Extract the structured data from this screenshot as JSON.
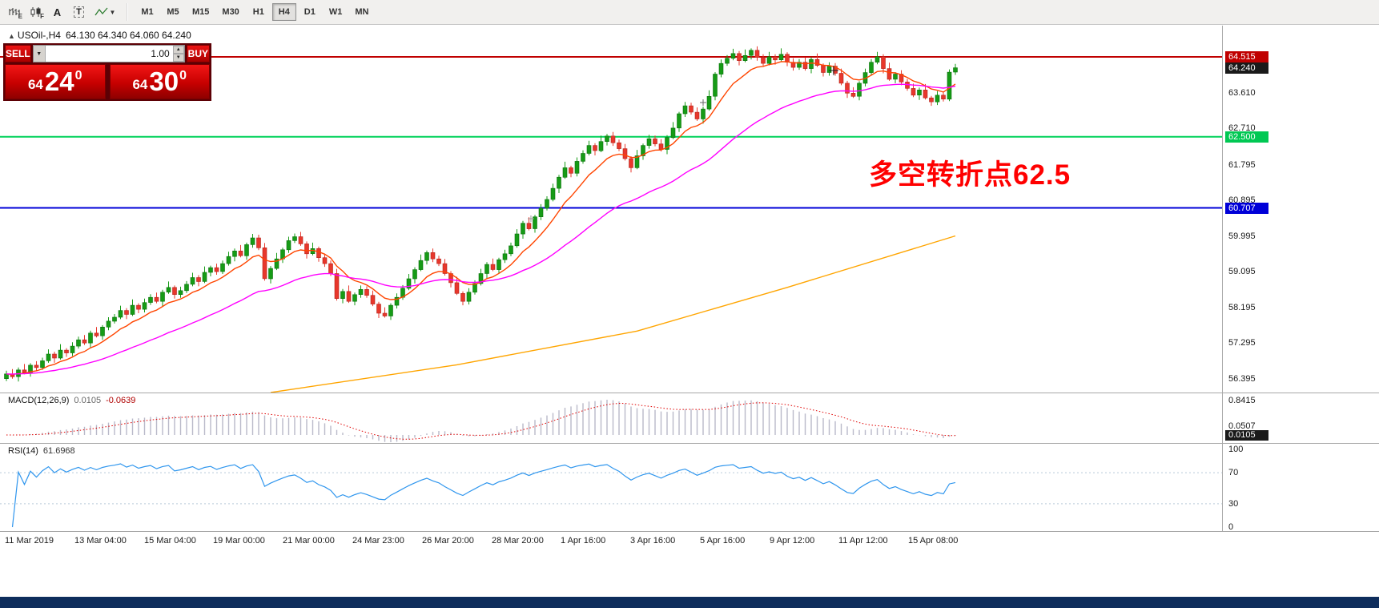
{
  "toolbar": {
    "tools": [
      {
        "name": "bar-chart",
        "sub": "E"
      },
      {
        "name": "candlestick-chart",
        "sub": "F"
      },
      {
        "name": "cursor",
        "glyph": "A"
      },
      {
        "name": "text-label",
        "glyph": "T"
      },
      {
        "name": "indicators",
        "sub": ""
      }
    ],
    "timeframes": [
      "M1",
      "M5",
      "M15",
      "M30",
      "H1",
      "H4",
      "D1",
      "W1",
      "MN"
    ],
    "active_timeframe": "H4"
  },
  "symbol_header": {
    "arrow": "▲",
    "symbol": "USOil-,H4",
    "ohlc": "64.130 64.340 64.060 64.240"
  },
  "trade_panel": {
    "sell_label": "SELL",
    "buy_label": "BUY",
    "volume": "1.00",
    "bid": {
      "prefix": "64",
      "big": "24",
      "sup": "0"
    },
    "ask": {
      "prefix": "64",
      "big": "30",
      "sup": "0"
    }
  },
  "annotation": {
    "text": "多空转折点62.5",
    "color": "#ff0000"
  },
  "hlines": [
    {
      "price": 64.515,
      "color": "#c00000",
      "label": "64.515"
    },
    {
      "price": 62.5,
      "color": "#00d25a",
      "label": "62.500"
    },
    {
      "price": 60.707,
      "color": "#0000d8",
      "label": "60.707"
    }
  ],
  "price_axis": {
    "ticks": [
      "63.610",
      "62.710",
      "61.795",
      "60.895",
      "59.995",
      "59.095",
      "58.195",
      "57.295",
      "56.395"
    ],
    "badges": [
      {
        "text": "64.515",
        "color": "#c00000"
      },
      {
        "text": "64.240",
        "color": "#1a1a1a"
      },
      {
        "text": "62.500",
        "color": "#00c853"
      },
      {
        "text": "60.707",
        "color": "#0000d8"
      }
    ]
  },
  "macd_panel": {
    "label": "MACD(12,26,9)",
    "main_value": "0.0105",
    "signal_value": "-0.0639",
    "axis_top": "0.8415",
    "axis_low": "0.0507",
    "value_badge": "0.0105"
  },
  "rsi_panel": {
    "label": "RSI(14)",
    "value": "61.6968",
    "axis": [
      "100",
      "70",
      "30",
      "0"
    ],
    "levels": [
      70,
      30
    ]
  },
  "time_axis": {
    "labels": [
      "11 Mar 2019",
      "13 Mar 04:00",
      "15 Mar 04:00",
      "19 Mar 00:00",
      "21 Mar 00:00",
      "24 Mar 23:00",
      "26 Mar 20:00",
      "28 Mar 20:00",
      "1 Apr 16:00",
      "3 Apr 16:00",
      "5 Apr 16:00",
      "9 Apr 12:00",
      "11 Apr 12:00",
      "15 Apr 08:00"
    ]
  },
  "chart_data": {
    "type": "candlestick",
    "symbol": "USOil-",
    "timeframe": "H4",
    "title": "USOil- H4 candlestick chart with MACD(12,26,9) and RSI(14)",
    "ylim": [
      56.0,
      65.3
    ],
    "last_bar": {
      "open": 64.13,
      "high": 64.34,
      "low": 64.06,
      "close": 64.24
    },
    "key_levels": [
      64.515,
      62.5,
      60.707
    ],
    "candles": [
      [
        56.4,
        56.6,
        56.34,
        56.52
      ],
      [
        56.52,
        56.64,
        56.4,
        56.45
      ],
      [
        56.45,
        56.68,
        56.33,
        56.62
      ],
      [
        56.62,
        56.77,
        56.51,
        56.55
      ],
      [
        56.55,
        56.79,
        56.45,
        56.74
      ],
      [
        56.74,
        56.84,
        56.6,
        56.68
      ],
      [
        56.68,
        56.93,
        56.62,
        56.85
      ],
      [
        56.85,
        57.14,
        56.8,
        57.02
      ],
      [
        57.02,
        57.08,
        56.8,
        56.92
      ],
      [
        56.92,
        57.27,
        56.88,
        57.12
      ],
      [
        57.12,
        57.17,
        56.95,
        57.05
      ],
      [
        57.05,
        57.32,
        56.97,
        57.22
      ],
      [
        57.22,
        57.46,
        57.16,
        57.38
      ],
      [
        57.38,
        57.5,
        57.25,
        57.3
      ],
      [
        57.3,
        57.61,
        57.18,
        57.55
      ],
      [
        57.55,
        57.7,
        57.44,
        57.48
      ],
      [
        57.48,
        57.75,
        57.38,
        57.7
      ],
      [
        57.7,
        57.95,
        57.62,
        57.85
      ],
      [
        57.85,
        58.03,
        57.79,
        57.95
      ],
      [
        57.95,
        58.24,
        57.9,
        58.12
      ],
      [
        58.12,
        58.18,
        57.9,
        58.02
      ],
      [
        58.02,
        58.4,
        57.98,
        58.25
      ],
      [
        58.25,
        58.3,
        58.05,
        58.15
      ],
      [
        58.15,
        58.42,
        58.07,
        58.32
      ],
      [
        58.32,
        58.53,
        58.26,
        58.45
      ],
      [
        58.45,
        58.57,
        58.3,
        58.35
      ],
      [
        58.35,
        58.64,
        58.23,
        58.58
      ],
      [
        58.58,
        58.85,
        58.54,
        58.7
      ],
      [
        58.7,
        58.75,
        58.42,
        58.52
      ],
      [
        58.52,
        58.72,
        58.44,
        58.62
      ],
      [
        58.62,
        58.86,
        58.56,
        58.78
      ],
      [
        58.78,
        59.07,
        58.73,
        58.95
      ],
      [
        58.95,
        59.01,
        58.73,
        58.85
      ],
      [
        58.85,
        59.23,
        58.81,
        59.08
      ],
      [
        59.08,
        59.25,
        58.98,
        59.2
      ],
      [
        59.2,
        59.3,
        59.02,
        59.1
      ],
      [
        59.1,
        59.38,
        59.04,
        59.3
      ],
      [
        59.3,
        59.6,
        59.25,
        59.48
      ],
      [
        59.48,
        59.68,
        59.36,
        59.62
      ],
      [
        59.62,
        59.77,
        59.46,
        59.5
      ],
      [
        59.5,
        59.83,
        59.4,
        59.78
      ],
      [
        59.78,
        60.05,
        59.7,
        59.95
      ],
      [
        59.95,
        60.03,
        59.64,
        59.7
      ],
      [
        59.7,
        59.82,
        58.87,
        58.92
      ],
      [
        58.92,
        59.24,
        58.8,
        59.18
      ],
      [
        59.18,
        59.57,
        59.14,
        59.42
      ],
      [
        59.42,
        59.7,
        59.32,
        59.65
      ],
      [
        59.65,
        59.98,
        59.57,
        59.88
      ],
      [
        59.88,
        60.06,
        59.82,
        59.98
      ],
      [
        59.98,
        60.1,
        59.75,
        59.8
      ],
      [
        59.8,
        59.86,
        59.43,
        59.55
      ],
      [
        59.55,
        59.83,
        59.51,
        59.68
      ],
      [
        59.68,
        59.73,
        59.35,
        59.45
      ],
      [
        59.45,
        59.55,
        59.22,
        59.3
      ],
      [
        59.3,
        59.38,
        58.99,
        59.05
      ],
      [
        59.05,
        59.17,
        58.37,
        58.42
      ],
      [
        58.42,
        58.66,
        58.3,
        58.6
      ],
      [
        58.6,
        58.75,
        58.31,
        58.35
      ],
      [
        58.35,
        58.57,
        58.25,
        58.52
      ],
      [
        58.52,
        58.75,
        58.44,
        58.65
      ],
      [
        58.65,
        58.73,
        58.44,
        58.5
      ],
      [
        58.5,
        58.62,
        58.23,
        58.28
      ],
      [
        58.28,
        58.34,
        57.93,
        58.05
      ],
      [
        58.05,
        58.2,
        57.94,
        57.98
      ],
      [
        57.98,
        58.3,
        57.88,
        58.25
      ],
      [
        58.25,
        58.55,
        58.17,
        58.45
      ],
      [
        58.45,
        58.76,
        58.39,
        58.68
      ],
      [
        58.68,
        59.04,
        58.63,
        58.92
      ],
      [
        58.92,
        59.21,
        58.8,
        59.15
      ],
      [
        59.15,
        59.53,
        59.11,
        59.38
      ],
      [
        59.38,
        59.63,
        59.28,
        59.58
      ],
      [
        59.58,
        59.68,
        59.34,
        59.42
      ],
      [
        59.42,
        59.5,
        59.24,
        59.3
      ],
      [
        59.3,
        59.42,
        59.0,
        59.05
      ],
      [
        59.05,
        59.11,
        58.7,
        58.82
      ],
      [
        58.82,
        58.97,
        58.51,
        58.55
      ],
      [
        58.55,
        58.6,
        58.25,
        58.35
      ],
      [
        58.35,
        58.68,
        58.27,
        58.58
      ],
      [
        58.58,
        58.88,
        58.52,
        58.8
      ],
      [
        58.8,
        59.17,
        58.75,
        59.05
      ],
      [
        59.05,
        59.34,
        58.93,
        59.28
      ],
      [
        59.28,
        59.43,
        59.11,
        59.15
      ],
      [
        59.15,
        59.45,
        59.05,
        59.4
      ],
      [
        59.4,
        59.65,
        59.32,
        59.55
      ],
      [
        59.55,
        59.83,
        59.49,
        59.75
      ],
      [
        59.75,
        60.17,
        59.7,
        60.05
      ],
      [
        60.05,
        60.38,
        59.93,
        60.32
      ],
      [
        60.32,
        60.47,
        60.14,
        60.18
      ],
      [
        60.18,
        60.53,
        60.08,
        60.48
      ],
      [
        60.48,
        60.8,
        60.4,
        60.7
      ],
      [
        60.7,
        61.0,
        60.64,
        60.92
      ],
      [
        60.92,
        61.32,
        60.87,
        61.2
      ],
      [
        61.2,
        61.54,
        61.08,
        61.48
      ],
      [
        61.48,
        61.87,
        61.44,
        61.72
      ],
      [
        61.72,
        61.77,
        61.48,
        61.58
      ],
      [
        61.58,
        61.98,
        61.5,
        61.88
      ],
      [
        61.88,
        62.16,
        61.82,
        62.08
      ],
      [
        62.08,
        62.4,
        62.03,
        62.28
      ],
      [
        62.28,
        62.34,
        62.03,
        62.15
      ],
      [
        62.15,
        62.53,
        62.11,
        62.38
      ],
      [
        62.38,
        62.57,
        62.28,
        62.52
      ],
      [
        62.52,
        62.62,
        62.27,
        62.35
      ],
      [
        62.35,
        62.43,
        62.14,
        62.2
      ],
      [
        62.2,
        62.32,
        61.9,
        61.95
      ],
      [
        61.95,
        62.01,
        61.6,
        61.72
      ],
      [
        61.72,
        62.17,
        61.68,
        62.02
      ],
      [
        62.02,
        62.33,
        61.92,
        62.28
      ],
      [
        62.28,
        62.55,
        62.2,
        62.45
      ],
      [
        62.45,
        62.53,
        62.26,
        62.32
      ],
      [
        62.32,
        62.44,
        62.13,
        62.18
      ],
      [
        62.18,
        62.54,
        62.06,
        62.48
      ],
      [
        62.48,
        62.87,
        62.44,
        62.72
      ],
      [
        62.72,
        63.13,
        62.62,
        63.08
      ],
      [
        63.08,
        63.38,
        63.0,
        63.28
      ],
      [
        63.28,
        63.36,
        63.06,
        63.12
      ],
      [
        63.12,
        63.24,
        62.9,
        62.95
      ],
      [
        62.95,
        63.26,
        62.83,
        63.2
      ],
      [
        63.2,
        63.67,
        63.16,
        63.52
      ],
      [
        63.52,
        64.13,
        63.42,
        64.08
      ],
      [
        64.08,
        64.45,
        64.0,
        64.35
      ],
      [
        64.35,
        64.56,
        64.29,
        64.48
      ],
      [
        64.48,
        64.72,
        64.43,
        64.6
      ],
      [
        64.6,
        64.66,
        64.3,
        64.42
      ],
      [
        64.42,
        64.7,
        64.38,
        64.55
      ],
      [
        64.55,
        64.73,
        64.45,
        64.68
      ],
      [
        64.68,
        64.78,
        64.42,
        64.5
      ],
      [
        64.5,
        64.58,
        64.29,
        64.35
      ],
      [
        64.35,
        64.64,
        64.3,
        64.52
      ],
      [
        64.52,
        64.58,
        64.32,
        64.44
      ],
      [
        64.44,
        64.73,
        64.4,
        64.58
      ],
      [
        64.58,
        64.63,
        64.28,
        64.38
      ],
      [
        64.38,
        64.48,
        64.17,
        64.25
      ],
      [
        64.25,
        64.46,
        64.19,
        64.38
      ],
      [
        64.38,
        64.5,
        64.17,
        64.22
      ],
      [
        64.22,
        64.51,
        64.1,
        64.45
      ],
      [
        64.45,
        64.6,
        64.26,
        64.3
      ],
      [
        64.3,
        64.35,
        64.02,
        64.12
      ],
      [
        64.12,
        64.38,
        64.04,
        64.28
      ],
      [
        64.28,
        64.36,
        64.04,
        64.1
      ],
      [
        64.1,
        64.22,
        63.8,
        63.85
      ],
      [
        63.85,
        63.91,
        63.48,
        63.6
      ],
      [
        63.6,
        63.75,
        63.48,
        63.52
      ],
      [
        63.52,
        63.9,
        63.42,
        63.85
      ],
      [
        63.85,
        64.22,
        63.77,
        64.12
      ],
      [
        64.12,
        64.46,
        64.06,
        64.38
      ],
      [
        64.38,
        64.64,
        64.33,
        64.52
      ],
      [
        64.52,
        64.58,
        64.1,
        64.22
      ],
      [
        64.22,
        64.37,
        63.91,
        63.95
      ],
      [
        63.95,
        64.13,
        63.85,
        64.08
      ],
      [
        64.08,
        64.18,
        63.8,
        63.88
      ],
      [
        63.88,
        63.96,
        63.66,
        63.72
      ],
      [
        63.72,
        63.84,
        63.5,
        63.55
      ],
      [
        63.55,
        63.74,
        63.43,
        63.68
      ],
      [
        63.68,
        63.83,
        63.44,
        63.48
      ],
      [
        63.48,
        63.53,
        63.28,
        63.38
      ],
      [
        63.38,
        63.65,
        63.3,
        63.55
      ],
      [
        63.55,
        63.63,
        63.39,
        63.45
      ],
      [
        63.45,
        64.2,
        63.4,
        64.13
      ],
      [
        64.13,
        64.34,
        64.06,
        64.24
      ]
    ],
    "overlays": [
      {
        "name": "ma-fast",
        "type": "ema",
        "period": 9,
        "color": "#ff4500",
        "width": 1.4
      },
      {
        "name": "ma-mid",
        "type": "ema",
        "period": 34,
        "color": "#ff00ff",
        "width": 1.4
      },
      {
        "name": "ma-slow",
        "type": "points",
        "color": "#ffa500",
        "width": 1.4,
        "points": [
          [
            44,
            56.05
          ],
          [
            75,
            56.75
          ],
          [
            105,
            57.6
          ],
          [
            130,
            58.7
          ],
          [
            158,
            60.0
          ]
        ]
      }
    ],
    "markers": [
      {
        "x": 663,
        "y": 241,
        "size": 4,
        "color": "#999999"
      },
      {
        "x": 878,
        "y": 96,
        "size": 4,
        "color": "#666666"
      },
      {
        "x": 1041,
        "y": 56,
        "size": 6,
        "color": "#222222"
      }
    ],
    "indicators": [
      {
        "name": "MACD",
        "params": [
          12,
          26,
          9
        ],
        "histogram_color": "#b9b9c9",
        "signal_color": "#e00000"
      },
      {
        "name": "RSI",
        "params": [
          14
        ],
        "line_color": "#2f96ee"
      }
    ]
  }
}
